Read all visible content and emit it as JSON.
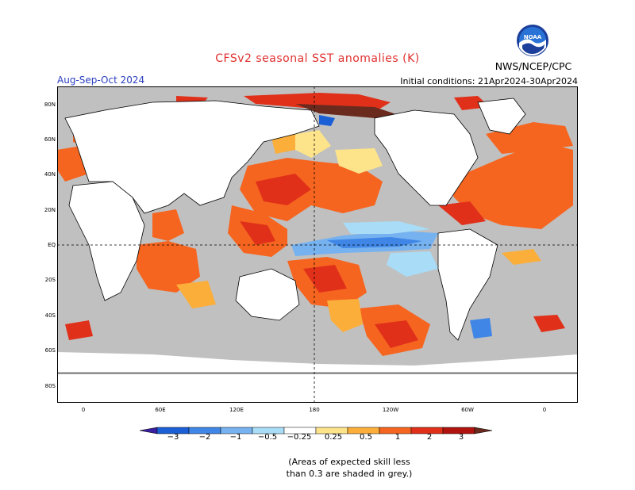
{
  "title": "CFSv2 seasonal SST anomalies (K)",
  "season": "Aug-Sep-Oct 2024",
  "initial_conditions": "Initial conditions: 21Apr2024-30Apr2024",
  "agency": "NWS/NCEP/CPC",
  "logo_text": "NOAA",
  "lat_labels": [
    "80N",
    "60N",
    "40N",
    "20N",
    "EQ",
    "20S",
    "40S",
    "60S",
    "80S"
  ],
  "lon_labels": [
    "0",
    "60E",
    "120E",
    "180",
    "120W",
    "60W",
    "0"
  ],
  "colorbar": {
    "labels": [
      "−3",
      "−2",
      "−1",
      "−0.5",
      "−0.25",
      "0.25",
      "0.5",
      "1",
      "2",
      "3"
    ],
    "colors": [
      "#3a1fa0",
      "#1b5fd6",
      "#3f86e6",
      "#76b2f0",
      "#a8dcf7",
      "#ffffff",
      "#fde38a",
      "#fbae3a",
      "#f6651f",
      "#e0301a",
      "#b0120e",
      "#6b2a1e"
    ]
  },
  "note": [
    "(Areas of expected skill less",
    "than 0.3 are shaded in grey.)"
  ],
  "map_colors": {
    "land": "#ffffff",
    "ocean_low_skill": "#c0c0c0"
  }
}
